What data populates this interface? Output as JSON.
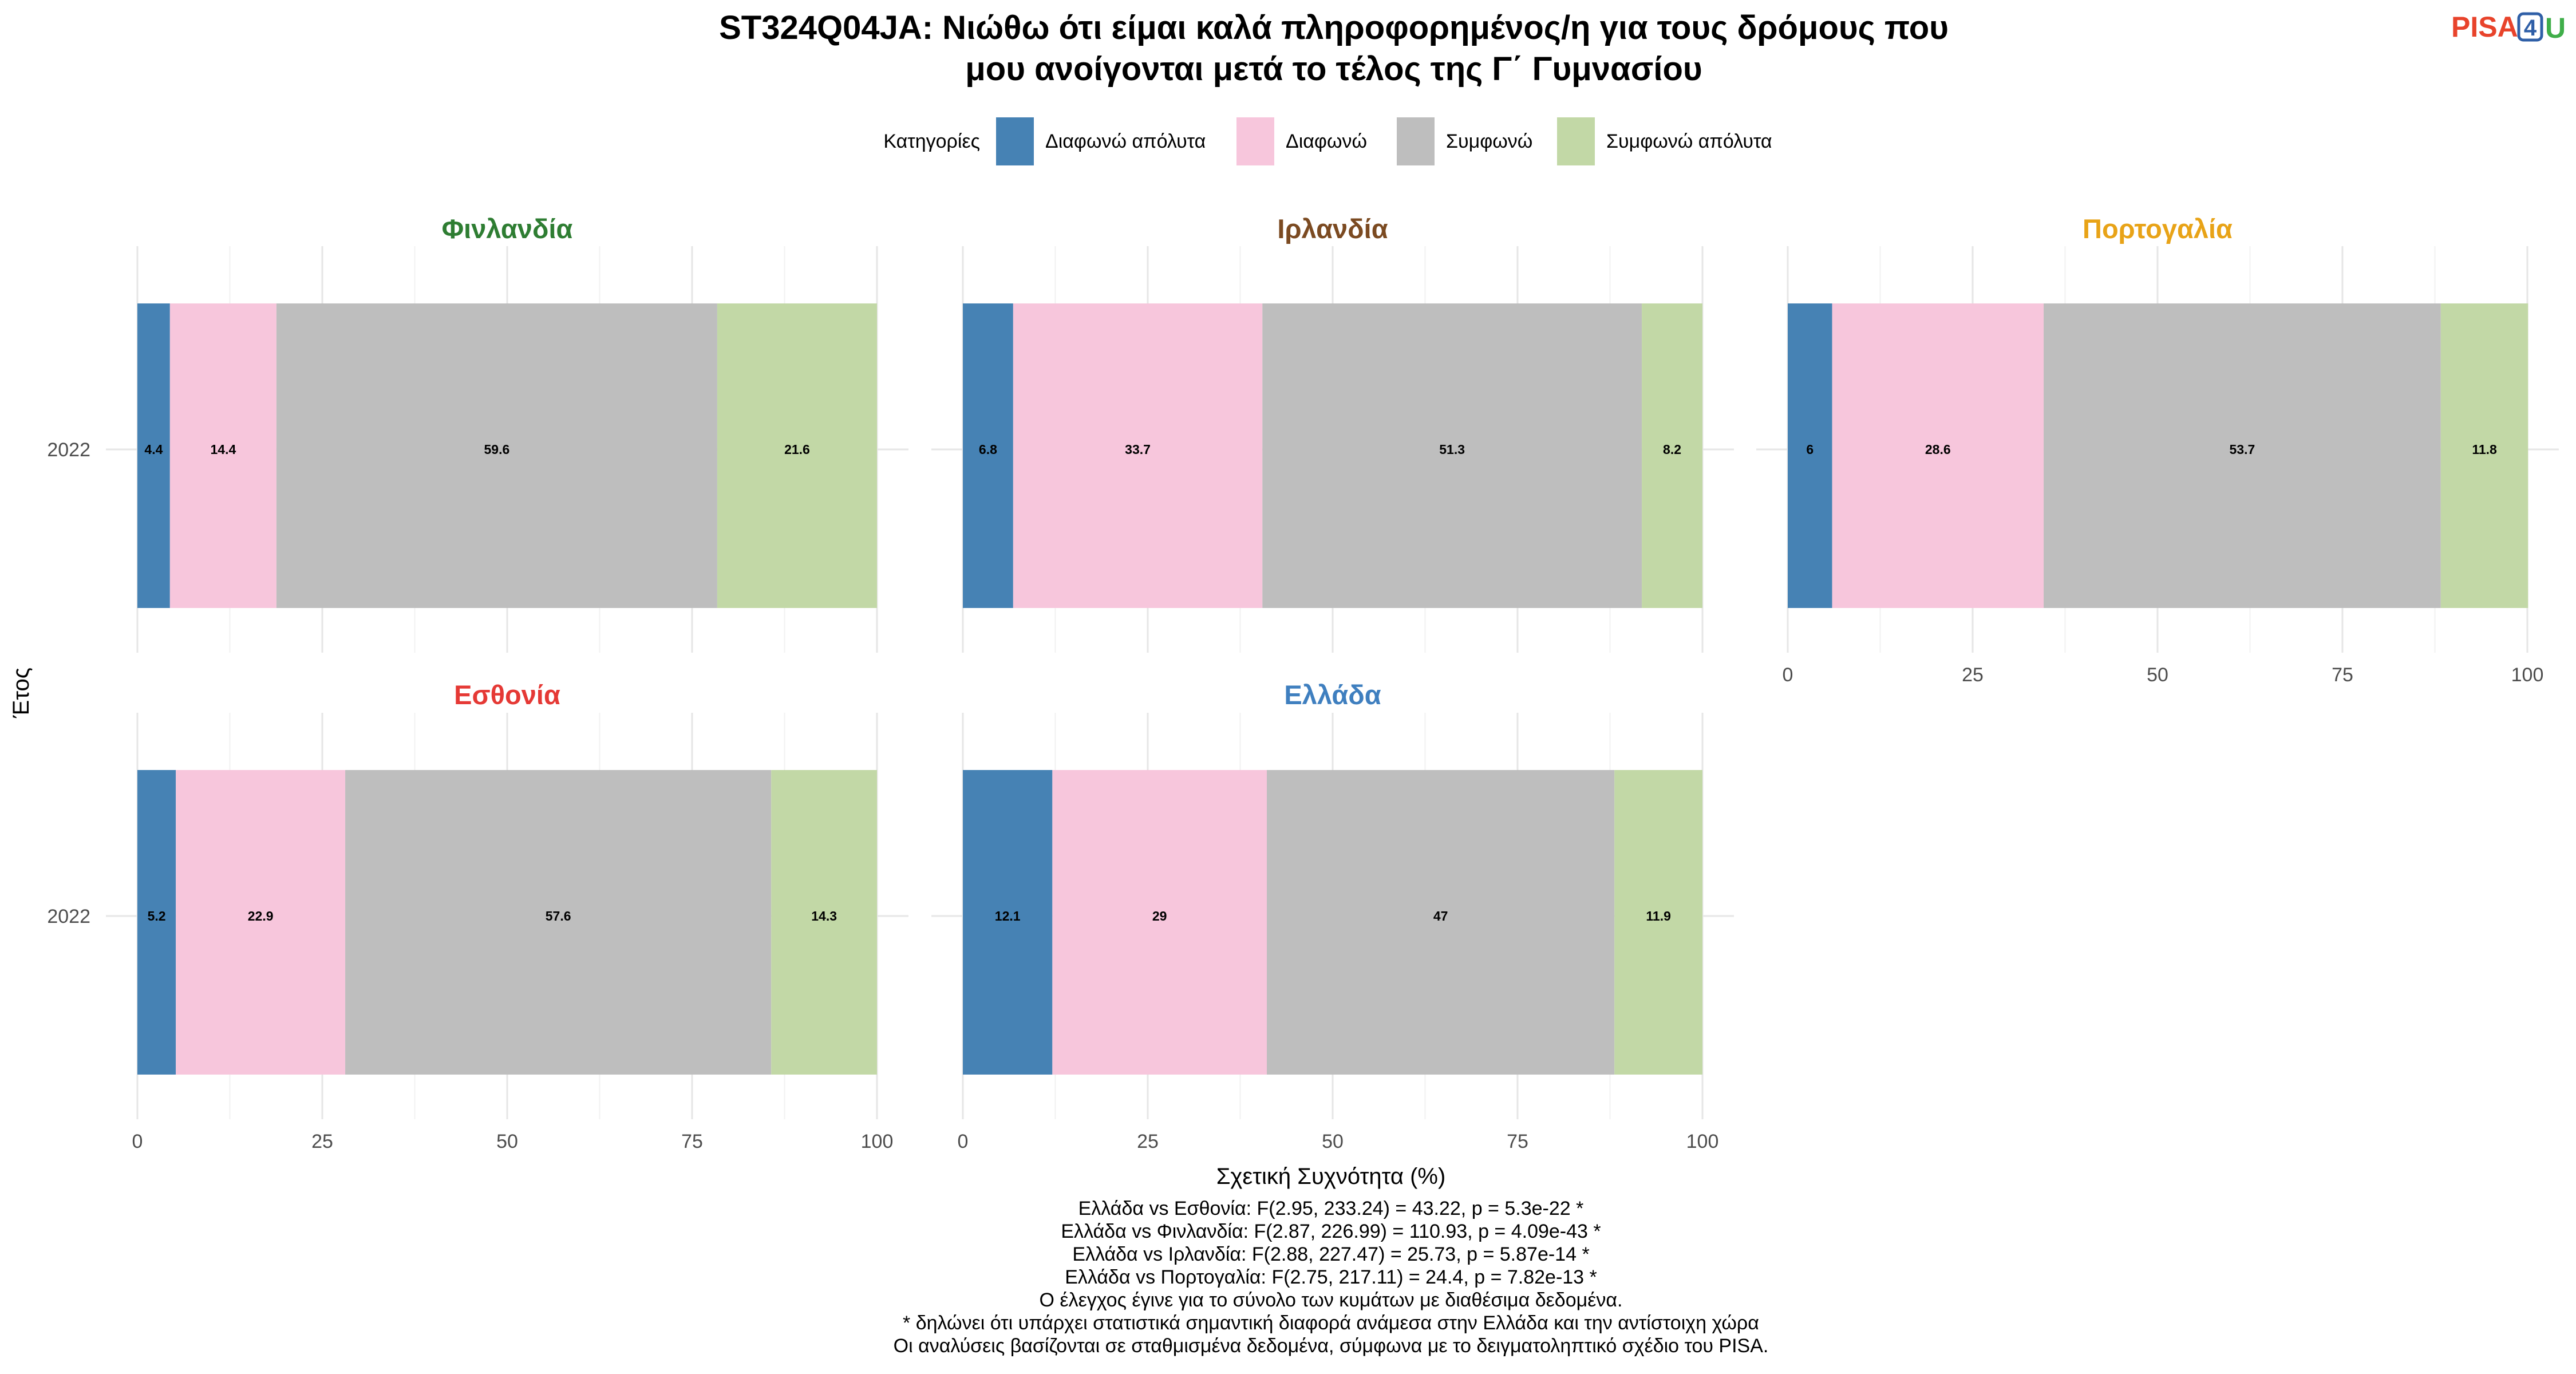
{
  "title_lines": [
    "ST324Q04JA: Νιώθω ότι είμαι καλά πληροφορημένος/η για τους δρόμους που",
    "μου ανοίγονται μετά το τέλος της Γ΄ Γυμνασίου"
  ],
  "logo": {
    "pisa": "PISA",
    "four": "4",
    "u": "U"
  },
  "legend": {
    "title": "Κατηγορίες",
    "items": [
      {
        "label": "Διαφωνώ απόλυτα",
        "color": "#4682b4"
      },
      {
        "label": "Διαφωνώ",
        "color": "#f7c6dc"
      },
      {
        "label": "Συμφωνώ",
        "color": "#bebebe"
      },
      {
        "label": "Συμφωνώ απόλυτα",
        "color": "#c2d8a6"
      }
    ]
  },
  "chart_data": {
    "type": "bar",
    "orientation": "horizontal",
    "stacked": true,
    "xlabel": "Σχετική Συχνότητα (%)",
    "ylabel": "Έτος",
    "xlim": [
      0,
      100
    ],
    "xticks": [
      "0",
      "25",
      "50",
      "75",
      "100"
    ],
    "categories": [
      "Διαφωνώ απόλυτα",
      "Διαφωνώ",
      "Συμφωνώ",
      "Συμφωνώ απόλυτα"
    ],
    "panels": [
      {
        "country": "Φινλανδία",
        "color": "#2e7d32",
        "year": "2022",
        "values": [
          4.4,
          14.4,
          59.6,
          21.6
        ],
        "labels": [
          "4.4",
          "14.4",
          "59.6",
          "21.6"
        ]
      },
      {
        "country": "Ιρλανδία",
        "color": "#7b4a21",
        "year": "2022",
        "values": [
          6.8,
          33.7,
          51.3,
          8.2
        ],
        "labels": [
          "6.8",
          "33.7",
          "51.3",
          "8.2"
        ]
      },
      {
        "country": "Πορτογαλία",
        "color": "#e8a317",
        "year": "2022",
        "values": [
          6,
          28.6,
          53.7,
          11.8
        ],
        "labels": [
          "6",
          "28.6",
          "53.7",
          "11.8"
        ]
      },
      {
        "country": "Εσθονία",
        "color": "#e53935",
        "year": "2022",
        "values": [
          5.2,
          22.9,
          57.6,
          14.3
        ],
        "labels": [
          "5.2",
          "22.9",
          "57.6",
          "14.3"
        ]
      },
      {
        "country": "Ελλάδα",
        "color": "#3f7fbf",
        "year": "2022",
        "values": [
          12.1,
          29,
          47,
          11.9
        ],
        "labels": [
          "12.1",
          "29",
          "47",
          "11.9"
        ]
      }
    ]
  },
  "footnotes": [
    "Ελλάδα vs Εσθονία: F(2.95, 233.24) = 43.22, p = 5.3e-22 *",
    "Ελλάδα vs Φινλανδία: F(2.87, 226.99) = 110.93, p = 4.09e-43 *",
    "Ελλάδα vs Ιρλανδία: F(2.88, 227.47) = 25.73, p = 5.87e-14 *",
    "Ελλάδα vs Πορτογαλία: F(2.75, 217.11) = 24.4, p = 7.82e-13 *",
    "Ο έλεγχος έγινε για το σύνολο των κυμάτων με διαθέσιμα δεδομένα.",
    "* δηλώνει ότι υπάρχει στατιστικά σημαντική διαφορά ανάμεσα στην Ελλάδα και την αντίστοιχη χώρα",
    "Οι αναλύσεις βασίζονται σε σταθμισμένα δεδομένα, σύμφωνα με το δειγματοληπτικό σχέδιο του PISA."
  ]
}
